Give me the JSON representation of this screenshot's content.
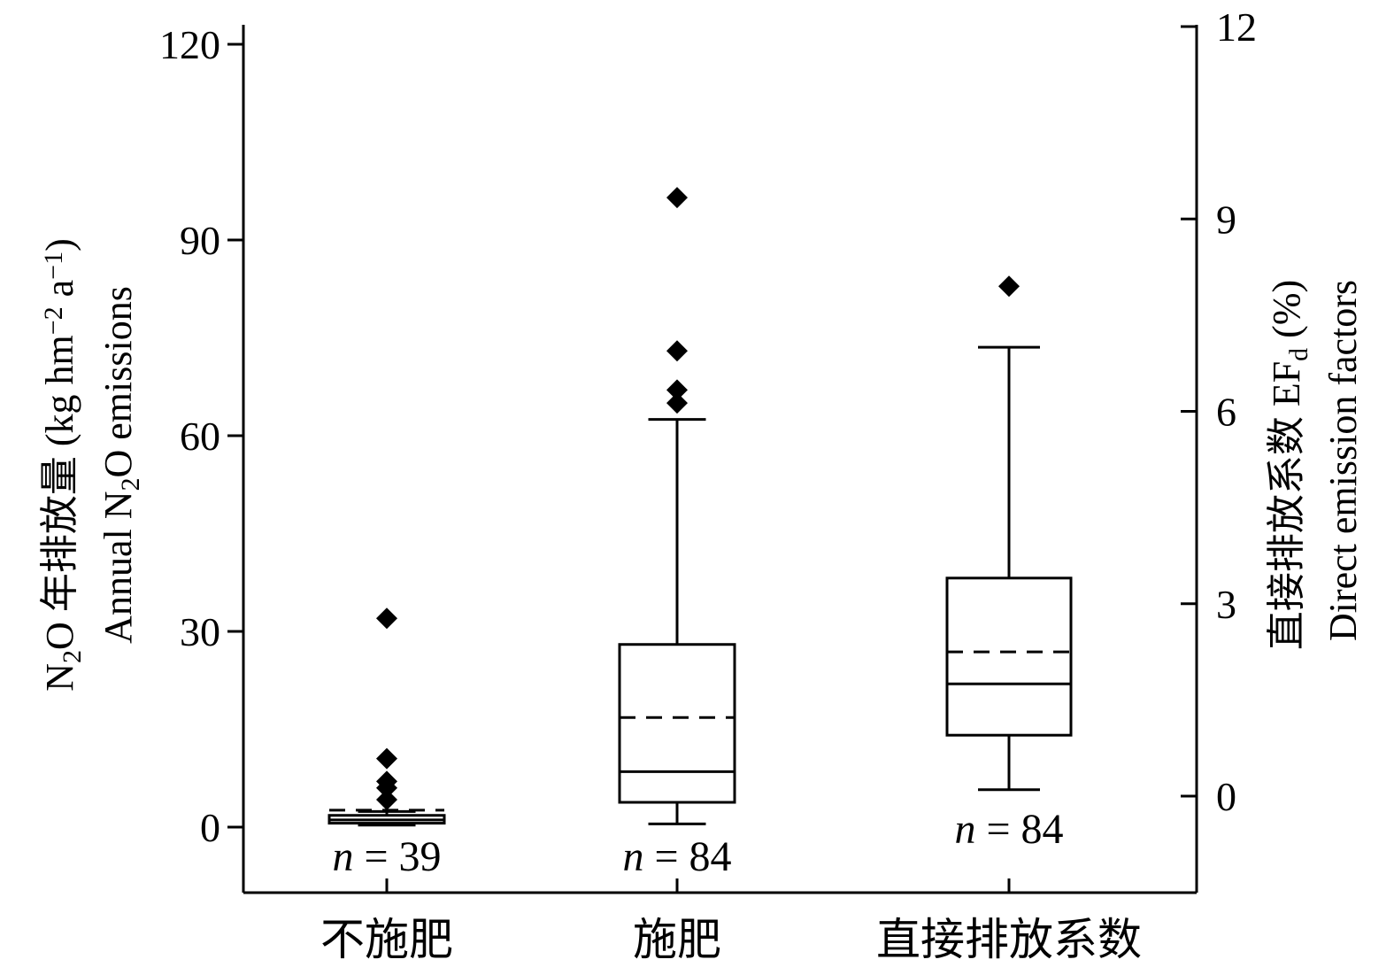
{
  "chart_data": {
    "type": "box",
    "categories": [
      "不施肥",
      "施肥",
      "直接排放系数"
    ],
    "left_axis": {
      "label_line1_parts": [
        "N",
        "2",
        "O 年排放量 (kg hm",
        "−2",
        " a",
        "−1",
        ")"
      ],
      "label_line2_parts": [
        "Annual N",
        "2",
        "O emissions"
      ],
      "ticks": [
        0,
        30,
        60,
        90,
        120
      ],
      "ylim": [
        -10,
        120
      ]
    },
    "right_axis": {
      "label_line1_parts": [
        "直接排放系数 EF",
        "d",
        " (%)"
      ],
      "label_line2": "Direct emission factors",
      "ticks": [
        0,
        3,
        6,
        9,
        12
      ],
      "ylim": [
        -1.5,
        12
      ]
    },
    "series": [
      {
        "category": "不施肥",
        "axis": "left",
        "whisker_low": 0.3,
        "q1": 0.6,
        "median": 1.1,
        "q3": 1.8,
        "whisker_high": 2.4,
        "mean": 2.6,
        "outliers": [
          32.0,
          10.5,
          7.0,
          6.0,
          4.2
        ],
        "n_label": "n = 39"
      },
      {
        "category": "施肥",
        "axis": "left",
        "whisker_low": 0.5,
        "q1": 3.8,
        "median": 8.5,
        "q3": 28.0,
        "whisker_high": 62.5,
        "mean": 16.8,
        "outliers": [
          96.5,
          73.0,
          67.0,
          65.0
        ],
        "n_label": "n = 84"
      },
      {
        "category": "直接排放系数",
        "axis": "right",
        "whisker_low": 0.1,
        "q1": 0.95,
        "median": 1.75,
        "q3": 3.4,
        "whisker_high": 7.0,
        "mean": 2.25,
        "outliers": [
          7.95
        ],
        "n_label": "n = 84"
      }
    ]
  }
}
